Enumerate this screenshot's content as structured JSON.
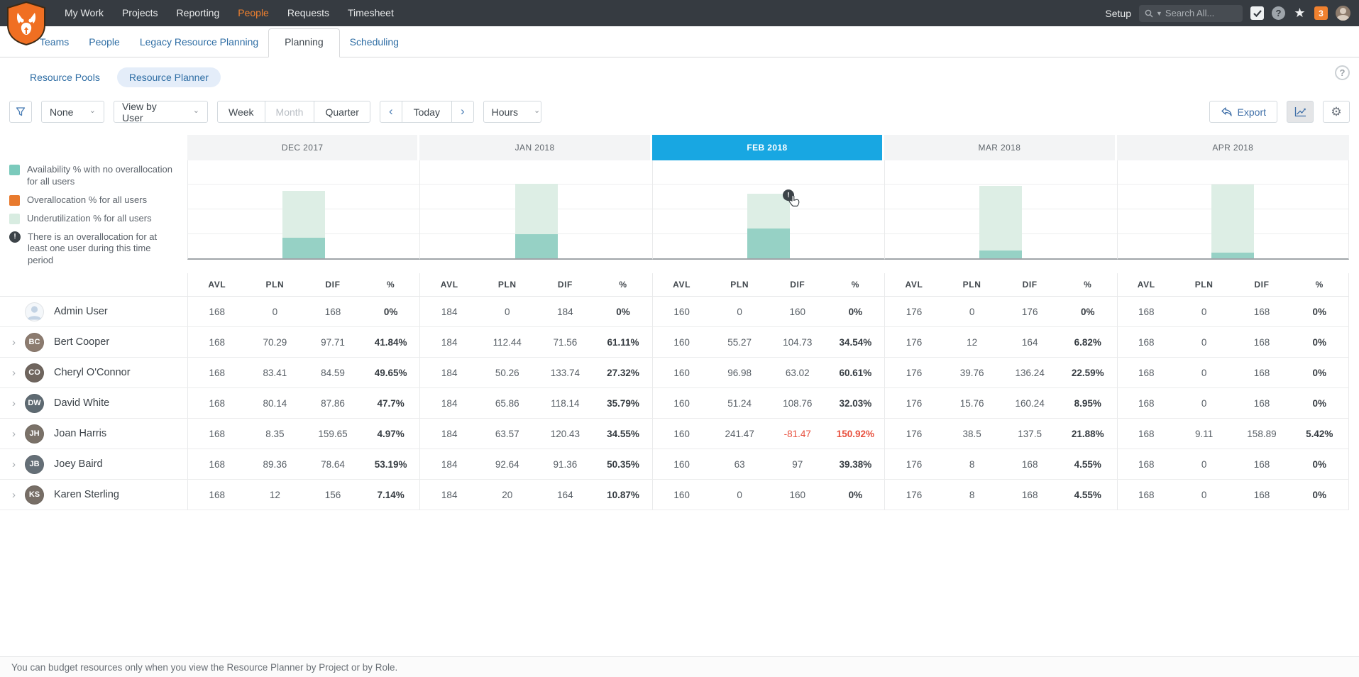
{
  "topnav": {
    "items": [
      "My Work",
      "Projects",
      "Reporting",
      "People",
      "Requests",
      "Timesheet"
    ],
    "active_item": "People",
    "setup_label": "Setup",
    "search_placeholder": "Search All...",
    "notification_count": "3"
  },
  "tabs": {
    "items": [
      "Teams",
      "People",
      "Legacy Resource Planning",
      "Planning",
      "Scheduling"
    ],
    "active": "Planning"
  },
  "subtabs": {
    "items": [
      "Resource Pools",
      "Resource Planner"
    ],
    "active": "Resource Planner",
    "help_label": "?"
  },
  "toolbar": {
    "filter_value": "None",
    "view_by_value": "View by User",
    "period_options": [
      "Week",
      "Month",
      "Quarter"
    ],
    "period_disabled": "Month",
    "today_label": "Today",
    "prev_label": "‹",
    "next_label": "›",
    "units_value": "Hours",
    "export_label": "Export"
  },
  "legend": [
    {
      "type": "swatch",
      "color": "#7BCABC",
      "label": "Availability % with no overallocation for all users"
    },
    {
      "type": "swatch",
      "color": "#E87A2E",
      "label": "Overallocation % for all users"
    },
    {
      "type": "swatch",
      "color": "#D8ECE1",
      "label": "Underutilization % for all users"
    },
    {
      "type": "warning",
      "color": "#3C4348",
      "label": "There is an overallocation for at least one user during this time period"
    }
  ],
  "chart_data": {
    "type": "bar",
    "stacked": true,
    "categories": [
      "DEC 2017",
      "JAN 2018",
      "FEB 2018",
      "MAR 2018",
      "APR 2018"
    ],
    "active_category": "FEB 2018",
    "series": [
      {
        "name": "Availability % with no overallocation for all users",
        "color": "#96D1C5",
        "values": [
          21,
          24,
          30,
          8,
          6
        ]
      },
      {
        "name": "Underutilization % for all users",
        "color": "#DDEEE5",
        "values": [
          47,
          51,
          35,
          65,
          68
        ]
      }
    ],
    "overallocation_flags": [
      false,
      false,
      true,
      false,
      false
    ],
    "ylim": [
      0,
      100
    ],
    "unit": "percent",
    "grid": true
  },
  "table": {
    "value_headers": [
      "AVL",
      "PLN",
      "DIF",
      "%"
    ],
    "months": [
      "DEC 2017",
      "JAN 2018",
      "FEB 2018",
      "MAR 2018",
      "APR 2018"
    ],
    "rows": [
      {
        "name": "Admin User",
        "expandable": false,
        "cells": [
          [
            "168",
            "0",
            "168",
            "0%"
          ],
          [
            "184",
            "0",
            "184",
            "0%"
          ],
          [
            "160",
            "0",
            "160",
            "0%"
          ],
          [
            "176",
            "0",
            "176",
            "0%"
          ],
          [
            "168",
            "0",
            "168",
            "0%"
          ]
        ]
      },
      {
        "name": "Bert Cooper",
        "expandable": true,
        "cells": [
          [
            "168",
            "70.29",
            "97.71",
            "41.84%"
          ],
          [
            "184",
            "112.44",
            "71.56",
            "61.11%"
          ],
          [
            "160",
            "55.27",
            "104.73",
            "34.54%"
          ],
          [
            "176",
            "12",
            "164",
            "6.82%"
          ],
          [
            "168",
            "0",
            "168",
            "0%"
          ]
        ]
      },
      {
        "name": "Cheryl O'Connor",
        "expandable": true,
        "cells": [
          [
            "168",
            "83.41",
            "84.59",
            "49.65%"
          ],
          [
            "184",
            "50.26",
            "133.74",
            "27.32%"
          ],
          [
            "160",
            "96.98",
            "63.02",
            "60.61%"
          ],
          [
            "176",
            "39.76",
            "136.24",
            "22.59%"
          ],
          [
            "168",
            "0",
            "168",
            "0%"
          ]
        ]
      },
      {
        "name": "David White",
        "expandable": true,
        "cells": [
          [
            "168",
            "80.14",
            "87.86",
            "47.7%"
          ],
          [
            "184",
            "65.86",
            "118.14",
            "35.79%"
          ],
          [
            "160",
            "51.24",
            "108.76",
            "32.03%"
          ],
          [
            "176",
            "15.76",
            "160.24",
            "8.95%"
          ],
          [
            "168",
            "0",
            "168",
            "0%"
          ]
        ]
      },
      {
        "name": "Joan Harris",
        "expandable": true,
        "red_cells": [
          [
            2,
            2
          ],
          [
            2,
            3
          ]
        ],
        "cells": [
          [
            "168",
            "8.35",
            "159.65",
            "4.97%"
          ],
          [
            "184",
            "63.57",
            "120.43",
            "34.55%"
          ],
          [
            "160",
            "241.47",
            "-81.47",
            "150.92%"
          ],
          [
            "176",
            "38.5",
            "137.5",
            "21.88%"
          ],
          [
            "168",
            "9.11",
            "158.89",
            "5.42%"
          ]
        ]
      },
      {
        "name": "Joey Baird",
        "expandable": true,
        "cells": [
          [
            "168",
            "89.36",
            "78.64",
            "53.19%"
          ],
          [
            "184",
            "92.64",
            "91.36",
            "50.35%"
          ],
          [
            "160",
            "63",
            "97",
            "39.38%"
          ],
          [
            "176",
            "8",
            "168",
            "4.55%"
          ],
          [
            "168",
            "0",
            "168",
            "0%"
          ]
        ]
      },
      {
        "name": "Karen Sterling",
        "expandable": true,
        "cells": [
          [
            "168",
            "12",
            "156",
            "7.14%"
          ],
          [
            "184",
            "20",
            "164",
            "10.87%"
          ],
          [
            "160",
            "0",
            "160",
            "0%"
          ],
          [
            "176",
            "8",
            "168",
            "4.55%"
          ],
          [
            "168",
            "0",
            "168",
            "0%"
          ]
        ]
      }
    ]
  },
  "footer": {
    "note": "You can budget resources only when you view the Resource Planner by Project or by Role."
  }
}
